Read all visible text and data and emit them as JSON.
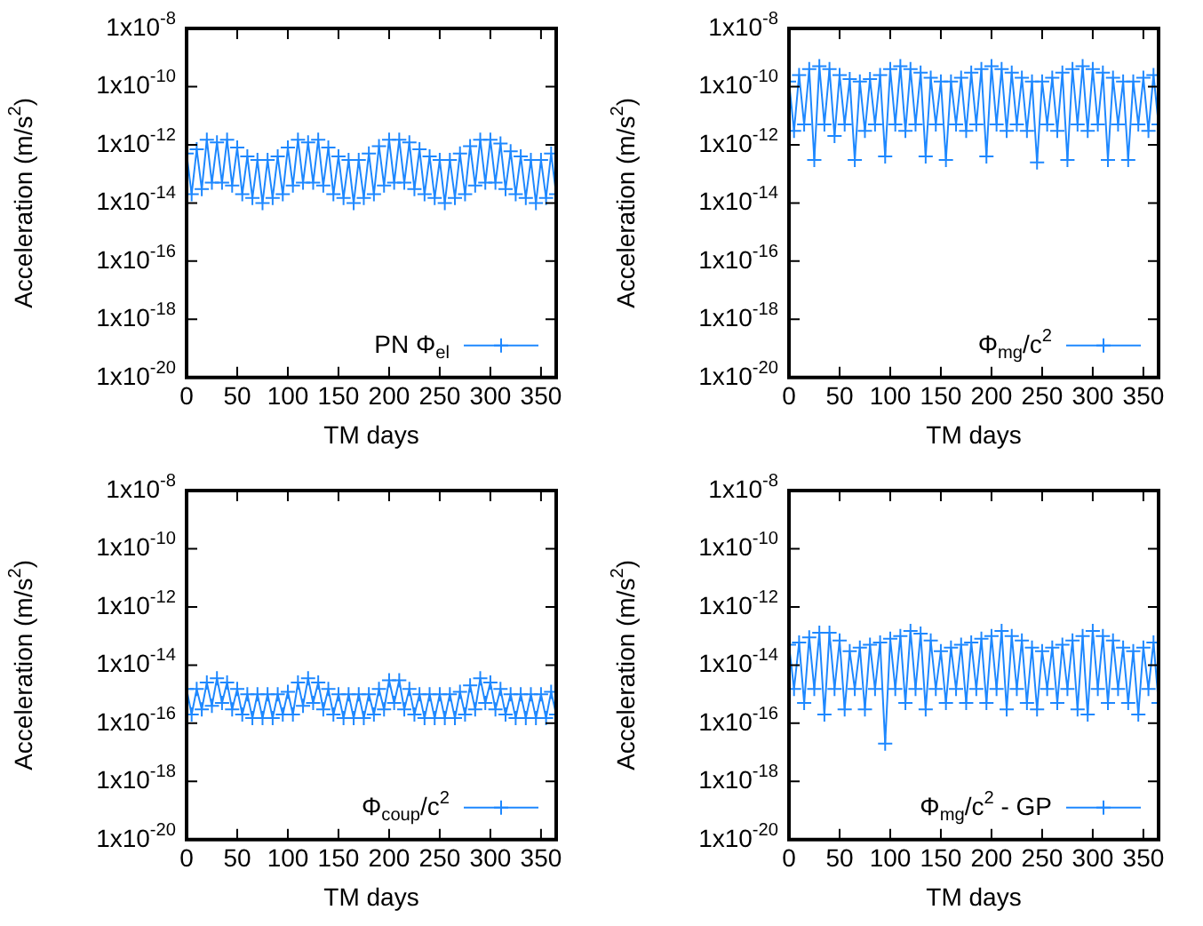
{
  "chart_data": [
    {
      "type": "line",
      "xlabel": "TM days",
      "ylabel": "Acceleration (m/s$^{2}$)",
      "log": true,
      "legend": "bottom right",
      "marker": "cross",
      "xlim": [
        0,
        365
      ],
      "xticks": [
        0,
        50,
        100,
        150,
        200,
        250,
        300,
        350
      ],
      "ylim": [
        1e-20,
        1e-08
      ],
      "yticks": [
        {
          "value": 1e-20,
          "label": "1x10$^{-20}$"
        },
        {
          "value": 1e-18,
          "label": "1x10$^{-18}$"
        },
        {
          "value": 1e-16,
          "label": "1x10$^{-16}$"
        },
        {
          "value": 1e-14,
          "label": "1x10$^{-14}$"
        },
        {
          "value": 1e-12,
          "label": "1x10$^{-12}$"
        },
        {
          "value": 1e-10,
          "label": "1x10$^{-10}$"
        },
        {
          "value": 1e-08,
          "label": "1x10$^{-8}$"
        }
      ],
      "x": [
        0,
        5,
        10,
        15,
        20,
        25,
        30,
        35,
        40,
        45,
        50,
        55,
        60,
        65,
        70,
        75,
        80,
        85,
        90,
        95,
        100,
        105,
        110,
        115,
        120,
        125,
        130,
        135,
        140,
        145,
        150,
        155,
        160,
        165,
        170,
        175,
        180,
        185,
        190,
        195,
        200,
        205,
        210,
        215,
        220,
        225,
        230,
        235,
        240,
        245,
        250,
        255,
        260,
        265,
        270,
        275,
        280,
        285,
        290,
        295,
        300,
        305,
        310,
        315,
        320,
        325,
        330,
        335,
        340,
        345,
        350,
        355,
        360,
        365
      ],
      "series": [
        {
          "name": "PN Φ$_{el}$",
          "color": "#1e88ff",
          "values": [
            5e-13,
            2e-14,
            7e-13,
            3e-14,
            1.5e-12,
            5e-14,
            1.2e-12,
            5e-14,
            1.5e-12,
            4e-14,
            8e-13,
            2e-14,
            4e-13,
            1.5e-14,
            3e-13,
            1e-14,
            3e-13,
            1.5e-14,
            4e-13,
            2e-14,
            8e-13,
            4e-14,
            1.5e-12,
            5e-14,
            1.2e-12,
            5e-14,
            1.5e-12,
            4e-14,
            8e-13,
            2e-14,
            4e-13,
            1.5e-14,
            3e-13,
            1e-14,
            3e-13,
            1.5e-14,
            5e-13,
            2e-14,
            9e-13,
            4e-14,
            1.5e-12,
            5e-14,
            1.5e-12,
            5e-14,
            1.2e-12,
            3e-14,
            7e-13,
            2e-14,
            4e-13,
            1.5e-14,
            3e-13,
            1e-14,
            3e-13,
            1.5e-14,
            5e-13,
            2e-14,
            9e-13,
            4e-14,
            1.5e-12,
            5e-14,
            1.5e-12,
            5e-14,
            1.1e-12,
            3e-14,
            6e-13,
            2e-14,
            4e-13,
            1.5e-14,
            3e-13,
            1e-14,
            3e-13,
            1.5e-14,
            5e-13,
            2e-14
          ]
        }
      ]
    },
    {
      "type": "line",
      "xlabel": "TM days",
      "ylabel": "Acceleration (m/s$^{2}$)",
      "log": true,
      "legend": "bottom right",
      "marker": "cross",
      "xlim": [
        0,
        365
      ],
      "xticks": [
        0,
        50,
        100,
        150,
        200,
        250,
        300,
        350
      ],
      "ylim": [
        1e-20,
        1e-08
      ],
      "yticks": [
        {
          "value": 1e-20,
          "label": "1x10$^{-20}$"
        },
        {
          "value": 1e-18,
          "label": "1x10$^{-18}$"
        },
        {
          "value": 1e-16,
          "label": "1x10$^{-16}$"
        },
        {
          "value": 1e-14,
          "label": "1x10$^{-14}$"
        },
        {
          "value": 1e-12,
          "label": "1x10$^{-12}$"
        },
        {
          "value": 1e-10,
          "label": "1x10$^{-10}$"
        },
        {
          "value": 1e-08,
          "label": "1x10$^{-8}$"
        }
      ],
      "x": [
        0,
        5,
        10,
        15,
        20,
        25,
        30,
        35,
        40,
        45,
        50,
        55,
        60,
        65,
        70,
        75,
        80,
        85,
        90,
        95,
        100,
        105,
        110,
        115,
        120,
        125,
        130,
        135,
        140,
        145,
        150,
        155,
        160,
        165,
        170,
        175,
        180,
        185,
        190,
        195,
        200,
        205,
        210,
        215,
        220,
        225,
        230,
        235,
        240,
        245,
        250,
        255,
        260,
        265,
        270,
        275,
        280,
        285,
        290,
        295,
        300,
        305,
        310,
        315,
        320,
        325,
        330,
        335,
        340,
        345,
        350,
        355,
        360,
        365
      ],
      "series": [
        {
          "name": "Φ$_{mg}$/c$^{2}$",
          "color": "#1e88ff",
          "values": [
            1.5e-10,
            3e-12,
            2.5e-10,
            5e-12,
            4e-10,
            3e-13,
            5e-10,
            5e-12,
            4e-10,
            2e-12,
            2.5e-10,
            5e-12,
            1.8e-10,
            3e-13,
            1.5e-10,
            3e-12,
            1.8e-10,
            5e-12,
            2.5e-10,
            4e-13,
            4e-10,
            5e-12,
            5e-10,
            3e-12,
            4e-10,
            5e-12,
            3e-10,
            4e-13,
            2e-10,
            5e-12,
            1.5e-10,
            3e-13,
            1.5e-10,
            5e-12,
            2e-10,
            3e-12,
            3e-10,
            5e-12,
            4e-10,
            4e-13,
            5e-10,
            5e-12,
            4e-10,
            3e-12,
            3e-10,
            5e-12,
            2e-10,
            3e-12,
            1.5e-10,
            2.5e-13,
            1.5e-10,
            5e-12,
            2e-10,
            3e-12,
            3e-10,
            3e-13,
            4e-10,
            5e-12,
            5e-10,
            3e-12,
            4e-10,
            5e-12,
            3e-10,
            3e-13,
            2e-10,
            5e-12,
            1.5e-10,
            3e-13,
            1.5e-10,
            5e-12,
            2e-10,
            3e-12,
            2.5e-10,
            5e-12
          ]
        }
      ]
    },
    {
      "type": "line",
      "xlabel": "TM days",
      "ylabel": "Acceleration (m/s$^{2}$)",
      "log": true,
      "legend": "bottom right",
      "marker": "cross",
      "xlim": [
        0,
        365
      ],
      "xticks": [
        0,
        50,
        100,
        150,
        200,
        250,
        300,
        350
      ],
      "ylim": [
        1e-20,
        1e-08
      ],
      "yticks": [
        {
          "value": 1e-20,
          "label": "1x10$^{-20}$"
        },
        {
          "value": 1e-18,
          "label": "1x10$^{-18}$"
        },
        {
          "value": 1e-16,
          "label": "1x10$^{-16}$"
        },
        {
          "value": 1e-14,
          "label": "1x10$^{-14}$"
        },
        {
          "value": 1e-12,
          "label": "1x10$^{-12}$"
        },
        {
          "value": 1e-10,
          "label": "1x10$^{-10}$"
        },
        {
          "value": 1e-08,
          "label": "1x10$^{-8}$"
        }
      ],
      "x": [
        0,
        5,
        10,
        15,
        20,
        25,
        30,
        35,
        40,
        45,
        50,
        55,
        60,
        65,
        70,
        75,
        80,
        85,
        90,
        95,
        100,
        105,
        110,
        115,
        120,
        125,
        130,
        135,
        140,
        145,
        150,
        155,
        160,
        165,
        170,
        175,
        180,
        185,
        190,
        195,
        200,
        205,
        210,
        215,
        220,
        225,
        230,
        235,
        240,
        245,
        250,
        255,
        260,
        265,
        270,
        275,
        280,
        285,
        290,
        295,
        300,
        305,
        310,
        315,
        320,
        325,
        330,
        335,
        340,
        345,
        350,
        355,
        360,
        365
      ],
      "series": [
        {
          "name": "Φ$_{coup}$/c$^{2}$",
          "color": "#1e88ff",
          "values": [
            1.5e-15,
            2e-16,
            1.5e-15,
            3e-16,
            2.5e-15,
            4e-16,
            3.5e-15,
            5e-16,
            2.5e-15,
            3e-16,
            1.5e-15,
            2e-16,
            1e-15,
            1.5e-16,
            1e-15,
            1.5e-16,
            1e-15,
            1.5e-16,
            1e-15,
            2e-16,
            1.2e-15,
            2e-16,
            2.5e-15,
            4e-16,
            3.5e-15,
            5e-16,
            2.5e-15,
            3e-16,
            1.5e-15,
            2e-16,
            1e-15,
            1.5e-16,
            1e-15,
            1.5e-16,
            1e-15,
            1.5e-16,
            1e-15,
            2e-16,
            1.5e-15,
            3e-16,
            3e-15,
            5e-16,
            3e-15,
            3e-16,
            1.5e-15,
            2e-16,
            1e-15,
            1.5e-16,
            1e-15,
            1.5e-16,
            1e-15,
            1.5e-16,
            1e-15,
            1.5e-16,
            1.2e-15,
            2e-16,
            2e-15,
            3e-16,
            3.5e-15,
            5e-16,
            2.5e-15,
            3e-16,
            1.5e-15,
            2e-16,
            1e-15,
            1.5e-16,
            1e-15,
            1.5e-16,
            1e-15,
            1.5e-16,
            1e-15,
            1.5e-16,
            1.2e-15,
            2e-16
          ]
        }
      ]
    },
    {
      "type": "line",
      "xlabel": "TM days",
      "ylabel": "Acceleration (m/s$^{2}$)",
      "log": true,
      "legend": "bottom right",
      "marker": "cross",
      "xlim": [
        0,
        365
      ],
      "xticks": [
        0,
        50,
        100,
        150,
        200,
        250,
        300,
        350
      ],
      "ylim": [
        1e-20,
        1e-08
      ],
      "yticks": [
        {
          "value": 1e-20,
          "label": "1x10$^{-20}$"
        },
        {
          "value": 1e-18,
          "label": "1x10$^{-18}$"
        },
        {
          "value": 1e-16,
          "label": "1x10$^{-16}$"
        },
        {
          "value": 1e-14,
          "label": "1x10$^{-14}$"
        },
        {
          "value": 1e-12,
          "label": "1x10$^{-12}$"
        },
        {
          "value": 1e-10,
          "label": "1x10$^{-10}$"
        },
        {
          "value": 1e-08,
          "label": "1x10$^{-8}$"
        }
      ],
      "x": [
        0,
        5,
        10,
        15,
        20,
        25,
        30,
        35,
        40,
        45,
        50,
        55,
        60,
        65,
        70,
        75,
        80,
        85,
        90,
        95,
        100,
        105,
        110,
        115,
        120,
        125,
        130,
        135,
        140,
        145,
        150,
        155,
        160,
        165,
        170,
        175,
        180,
        185,
        190,
        195,
        200,
        205,
        210,
        215,
        220,
        225,
        230,
        235,
        240,
        245,
        250,
        255,
        260,
        265,
        270,
        275,
        280,
        285,
        290,
        295,
        300,
        305,
        310,
        315,
        320,
        325,
        330,
        335,
        340,
        345,
        350,
        355,
        360,
        365
      ],
      "series": [
        {
          "name": "Φ$_{mg}$/c$^{2}$ - GP",
          "color": "#1e88ff",
          "values": [
            5e-14,
            1.5e-15,
            6e-14,
            5e-16,
            9e-14,
            1.5e-15,
            1.3e-13,
            2e-16,
            1.3e-13,
            1.5e-15,
            7e-14,
            3e-16,
            3e-14,
            1.5e-15,
            4e-14,
            3e-16,
            5e-14,
            1.5e-15,
            6e-14,
            2e-17,
            8e-14,
            1.5e-15,
            1e-13,
            5e-16,
            1.5e-13,
            1.5e-15,
            1.2e-13,
            3e-16,
            7e-14,
            1.5e-15,
            3e-14,
            5e-16,
            4e-14,
            1.5e-15,
            5e-14,
            5e-16,
            6e-14,
            1.5e-15,
            8e-14,
            5e-16,
            1e-13,
            1.5e-15,
            1.5e-13,
            3e-16,
            1e-13,
            1.5e-15,
            7e-14,
            5e-16,
            4e-14,
            3e-16,
            3e-14,
            1.5e-15,
            4e-14,
            5e-16,
            5e-14,
            1.5e-15,
            7e-14,
            3e-16,
            1e-13,
            2e-16,
            1.5e-13,
            1.5e-15,
            1e-13,
            5e-16,
            7e-14,
            1.5e-15,
            4e-14,
            5e-16,
            3e-14,
            2e-16,
            4e-14,
            1.5e-15,
            6e-14,
            5e-16
          ]
        }
      ]
    }
  ]
}
